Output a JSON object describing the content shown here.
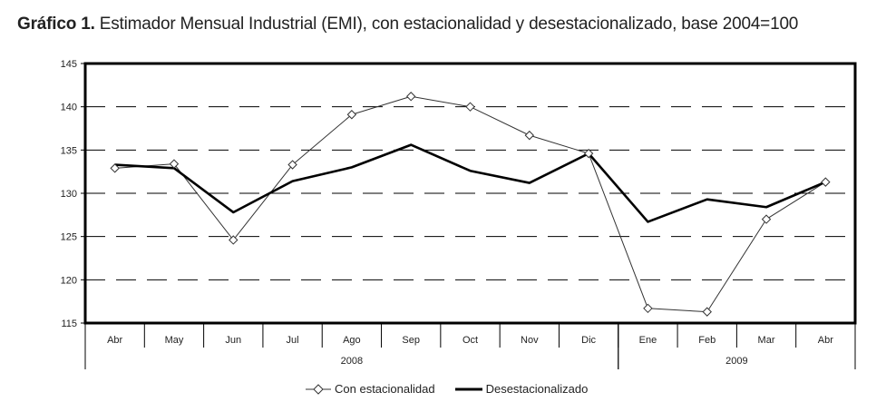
{
  "title": {
    "prefix": "Gráfico 1.",
    "text": "Estimador Mensual Industrial (EMI), con estacionalidad y desestacionalizado, base 2004=100"
  },
  "chart_data": {
    "type": "line",
    "categories": [
      "Abr",
      "May",
      "Jun",
      "Jul",
      "Ago",
      "Sep",
      "Oct",
      "Nov",
      "Dic",
      "Ene",
      "Feb",
      "Mar",
      "Abr"
    ],
    "years": [
      {
        "label": "2008",
        "from": 0,
        "to": 8
      },
      {
        "label": "2009",
        "from": 9,
        "to": 12
      }
    ],
    "ylim": [
      115,
      145
    ],
    "yticks": [
      115,
      120,
      125,
      130,
      135,
      140,
      145
    ],
    "grid": "dashed horizontal",
    "legend_position": "bottom",
    "series": [
      {
        "name": "Con estacionalidad",
        "color": "#333333",
        "marker": "diamond",
        "values": [
          132.9,
          133.4,
          124.6,
          133.3,
          139.1,
          141.2,
          140.0,
          136.7,
          134.6,
          116.7,
          116.3,
          127.0,
          131.3
        ]
      },
      {
        "name": "Desestacionalizado",
        "color": "#000000",
        "marker": "none",
        "values": [
          133.3,
          132.9,
          127.8,
          131.4,
          133.0,
          135.6,
          132.6,
          131.2,
          134.6,
          126.7,
          129.3,
          128.4,
          131.3
        ]
      }
    ]
  }
}
